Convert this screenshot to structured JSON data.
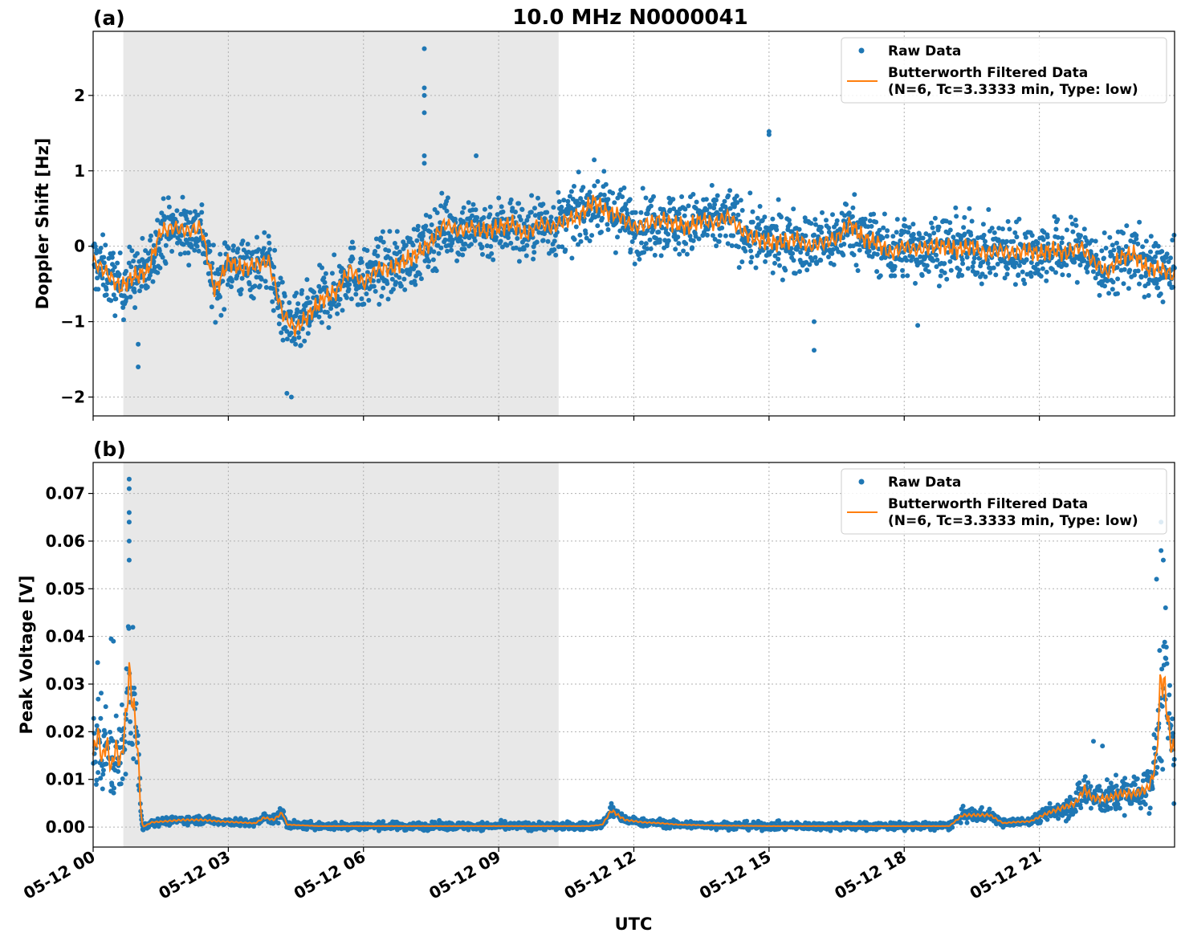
{
  "figure": {
    "title": "10.0 MHz N0000041",
    "xlabel": "UTC"
  },
  "legend": {
    "raw_label": "Raw Data",
    "filtered_label_line1": "Butterworth Filtered Data",
    "filtered_label_line2": "(N=6, Tc=3.3333 min, Type: low)"
  },
  "colors": {
    "raw": "#1f77b4",
    "filtered": "#ff7f0e",
    "night_shade": "#e8e8e8",
    "grid": "#b0b0b0"
  },
  "chart_data": [
    {
      "type": "scatter",
      "panel_label": "(a)",
      "ylabel": "Doppler Shift [Hz]",
      "x_unit": "hours UTC on 05-12",
      "xlim": [
        0,
        24
      ],
      "ylim": [
        -2.25,
        2.85
      ],
      "yticks": [
        -2,
        -1,
        0,
        1,
        2
      ],
      "ytick_labels": [
        "−2",
        "−1",
        "0",
        "1",
        "2"
      ],
      "xticks": [
        0,
        3,
        6,
        9,
        12,
        15,
        18,
        21
      ],
      "xtick_labels": [
        "05-12 00",
        "05-12 03",
        "05-12 06",
        "05-12 09",
        "05-12 12",
        "05-12 15",
        "05-12 18",
        "05-12 21"
      ],
      "grid": true,
      "legend_position": "top-right",
      "shaded_x_range": [
        0.67,
        10.33
      ],
      "filtered": {
        "name": "Butterworth Filtered Data",
        "x": [
          0,
          0.3,
          0.6,
          0.9,
          1.2,
          1.5,
          1.8,
          2.1,
          2.4,
          2.7,
          3.0,
          3.3,
          3.6,
          3.9,
          4.2,
          4.5,
          4.8,
          5.1,
          5.4,
          5.7,
          6.0,
          6.3,
          6.6,
          6.9,
          7.2,
          7.5,
          7.8,
          8.1,
          8.4,
          8.7,
          9.0,
          9.3,
          9.6,
          9.9,
          10.2,
          10.5,
          10.8,
          11.1,
          11.4,
          11.7,
          12.0,
          12.3,
          12.6,
          12.9,
          13.2,
          13.5,
          13.8,
          14.1,
          14.4,
          14.7,
          15.0,
          15.3,
          15.6,
          15.9,
          16.2,
          16.5,
          16.8,
          17.1,
          17.4,
          17.7,
          18.0,
          18.3,
          18.6,
          18.9,
          19.2,
          19.5,
          19.8,
          20.1,
          20.4,
          20.7,
          21.0,
          21.3,
          21.6,
          21.9,
          22.2,
          22.5,
          22.8,
          23.1,
          23.4,
          23.7,
          24.0
        ],
        "y": [
          -0.2,
          -0.35,
          -0.55,
          -0.4,
          -0.35,
          0.2,
          0.25,
          0.2,
          0.25,
          -0.6,
          -0.2,
          -0.3,
          -0.25,
          -0.2,
          -0.9,
          -1.1,
          -0.9,
          -0.7,
          -0.6,
          -0.3,
          -0.5,
          -0.3,
          -0.3,
          -0.2,
          -0.1,
          0.05,
          0.3,
          0.2,
          0.25,
          0.2,
          0.25,
          0.3,
          0.15,
          0.3,
          0.25,
          0.35,
          0.4,
          0.6,
          0.45,
          0.4,
          0.25,
          0.3,
          0.35,
          0.3,
          0.25,
          0.35,
          0.3,
          0.4,
          0.2,
          0.1,
          0.05,
          0.05,
          0.1,
          0.0,
          0.05,
          0.1,
          0.3,
          0.1,
          0.05,
          -0.1,
          0.0,
          -0.05,
          0.0,
          0.0,
          -0.05,
          0.0,
          -0.1,
          -0.05,
          -0.1,
          -0.05,
          -0.1,
          -0.05,
          -0.1,
          0.0,
          -0.2,
          -0.35,
          -0.15,
          -0.1,
          -0.3,
          -0.3,
          -0.4
        ]
      },
      "raw_outliers": {
        "name": "Raw Data",
        "x": [
          1.0,
          1.0,
          7.35,
          7.35,
          7.35,
          7.35,
          7.35,
          7.35,
          8.5,
          15.0,
          15.0,
          16.0,
          16.0,
          18.3,
          4.3,
          4.4
        ],
        "y": [
          -1.3,
          -1.6,
          2.62,
          2.1,
          2.0,
          1.77,
          1.2,
          1.1,
          1.2,
          1.52,
          1.48,
          -1.0,
          -1.38,
          -1.05,
          -1.95,
          -2.0
        ]
      }
    },
    {
      "type": "scatter",
      "panel_label": "(b)",
      "ylabel": "Peak Voltage [V]",
      "x_unit": "hours UTC on 05-12",
      "xlim": [
        0,
        24
      ],
      "ylim": [
        -0.0042,
        0.0765
      ],
      "yticks": [
        0.0,
        0.01,
        0.02,
        0.03,
        0.04,
        0.05,
        0.06,
        0.07
      ],
      "ytick_labels": [
        "0.00",
        "0.01",
        "0.02",
        "0.03",
        "0.04",
        "0.05",
        "0.06",
        "0.07"
      ],
      "xticks": [
        0,
        3,
        6,
        9,
        12,
        15,
        18,
        21
      ],
      "xtick_labels": [
        "05-12 00",
        "05-12 03",
        "05-12 06",
        "05-12 09",
        "05-12 12",
        "05-12 15",
        "05-12 18",
        "05-12 21"
      ],
      "grid": true,
      "legend_position": "top-right",
      "shaded_x_range": [
        0.67,
        10.33
      ],
      "filtered": {
        "name": "Butterworth Filtered Data",
        "x": [
          0,
          0.1,
          0.2,
          0.3,
          0.4,
          0.5,
          0.6,
          0.7,
          0.8,
          0.9,
          1.0,
          1.05,
          1.1,
          1.3,
          1.6,
          2.0,
          2.4,
          2.8,
          3.2,
          3.6,
          3.8,
          4.0,
          4.2,
          4.3,
          5.0,
          6.0,
          7.0,
          8.0,
          9.0,
          10.0,
          11.0,
          11.3,
          11.5,
          11.8,
          12.2,
          12.6,
          13.0,
          14.0,
          15.0,
          16.0,
          17.0,
          18.0,
          19.0,
          19.3,
          19.5,
          19.9,
          20.2,
          20.4,
          20.8,
          21.2,
          21.5,
          21.8,
          22.0,
          22.2,
          22.5,
          22.8,
          23.1,
          23.4,
          23.5,
          23.6,
          23.7,
          23.8,
          23.9,
          24.0
        ],
        "y": [
          0.015,
          0.02,
          0.014,
          0.018,
          0.012,
          0.017,
          0.013,
          0.02,
          0.032,
          0.025,
          0.015,
          0.004,
          0.0,
          0.001,
          0.0012,
          0.0015,
          0.0015,
          0.0012,
          0.001,
          0.0008,
          0.002,
          0.0015,
          0.003,
          0.0005,
          0.0002,
          0.0002,
          0.0002,
          0.0002,
          0.0002,
          0.0002,
          0.0002,
          0.0005,
          0.0035,
          0.0015,
          0.001,
          0.0008,
          0.0005,
          0.0003,
          0.0002,
          0.0002,
          0.0002,
          0.0002,
          0.0002,
          0.0025,
          0.0025,
          0.0025,
          0.0008,
          0.001,
          0.0012,
          0.003,
          0.004,
          0.005,
          0.008,
          0.006,
          0.006,
          0.007,
          0.007,
          0.008,
          0.01,
          0.015,
          0.032,
          0.028,
          0.018,
          0.016
        ]
      },
      "raw_outliers": {
        "name": "Raw Data",
        "x": [
          0.8,
          0.8,
          0.8,
          0.8,
          0.8,
          0.8,
          0.4,
          0.45,
          0.1,
          23.7,
          23.7,
          23.75,
          23.6,
          23.8,
          22.2,
          22.4
        ],
        "y": [
          0.073,
          0.071,
          0.066,
          0.064,
          0.06,
          0.056,
          0.0395,
          0.039,
          0.0345,
          0.064,
          0.058,
          0.056,
          0.052,
          0.046,
          0.018,
          0.017
        ]
      }
    }
  ]
}
